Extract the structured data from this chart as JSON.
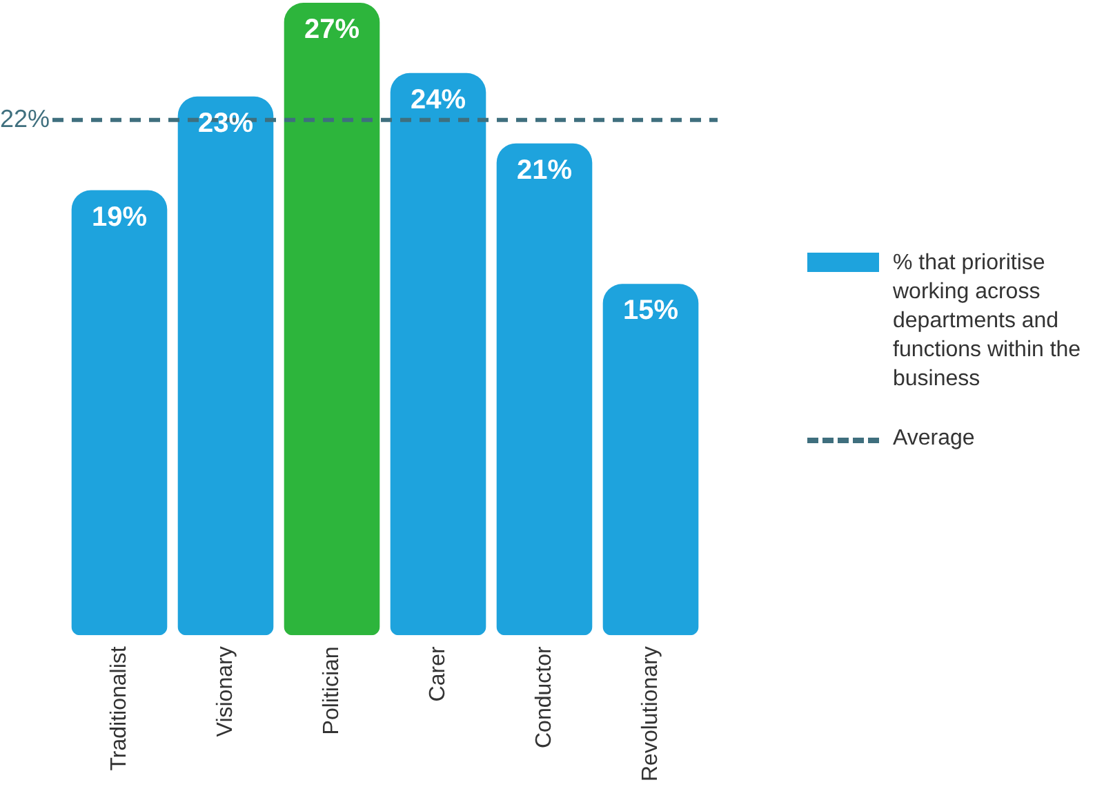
{
  "chart_data": {
    "type": "bar",
    "categories": [
      "Traditionalist",
      "Visionary",
      "Politician",
      "Carer",
      "Conductor",
      "Revolutionary"
    ],
    "series": [
      {
        "name": "% that prioritise working across departments and functions within the business",
        "color": "#1ea3dd",
        "colors": [
          "#1ea3dd",
          "#1ea3dd",
          "#2db53c",
          "#1ea3dd",
          "#1ea3dd",
          "#1ea3dd"
        ],
        "values": [
          19,
          23,
          27,
          24,
          21,
          15
        ],
        "value_labels": [
          "19%",
          "23%",
          "27%",
          "24%",
          "21%",
          "15%"
        ]
      }
    ],
    "ref_lines": [
      {
        "axis": "y",
        "value": 22,
        "label": "Average",
        "color": "#3f6f7e",
        "line_style": "dashed"
      }
    ],
    "annotations": [
      "22%"
    ],
    "legend": "right",
    "grid": false
  }
}
